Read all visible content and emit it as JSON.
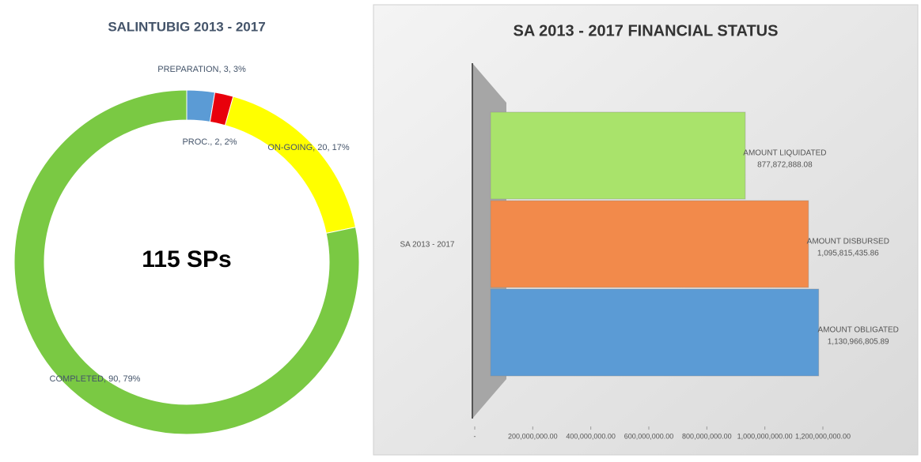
{
  "chart_data": [
    {
      "type": "donut",
      "title": "SALINTUBIG 2013 - 2017",
      "categories": [
        "PREPARATION",
        "PROC.",
        "ON-GOING",
        "COMPLETED"
      ],
      "values": [
        3,
        2,
        20,
        90
      ],
      "labels": [
        "PREPARATION, 3, 3%",
        "PROC., 2, 2%",
        "ON-GOING, 20, 17%",
        "COMPLETED, 90, 79%"
      ],
      "colors": [
        "#5b9bd5",
        "#e8000b",
        "#ffff00",
        "#7ac943"
      ],
      "center_label": "115 SPs"
    },
    {
      "type": "hbar",
      "title": "SA 2013 - 2017 FINANCIAL STATUS",
      "categories": [
        "SA 2013 - 2017"
      ],
      "series": [
        {
          "name": "AMOUNT LIQUIDATED",
          "color": "#a9e36b",
          "values": [
            877872888.08
          ],
          "value_labels": [
            "877,872,888.08"
          ]
        },
        {
          "name": "AMOUNT DISBURSED",
          "color": "#f28a4b",
          "values": [
            1095815435.86
          ],
          "value_labels": [
            "1,095,815,435.86"
          ]
        },
        {
          "name": "AMOUNT OBLIGATED",
          "color": "#5b9bd5",
          "values": [
            1130966805.89
          ],
          "value_labels": [
            "1,130,966,805.89"
          ]
        }
      ],
      "xlim": [
        0,
        1200000000
      ],
      "xticks": [
        {
          "value": 0,
          "label": "-"
        },
        {
          "value": 200000000,
          "label": "200,000,000.00"
        },
        {
          "value": 400000000,
          "label": "400,000,000.00"
        },
        {
          "value": 600000000,
          "label": "600,000,000.00"
        },
        {
          "value": 800000000,
          "label": "800,000,000.00"
        },
        {
          "value": 1000000000,
          "label": "1,000,000,000.00"
        },
        {
          "value": 1200000000,
          "label": "1,200,000,000.00"
        }
      ]
    }
  ]
}
